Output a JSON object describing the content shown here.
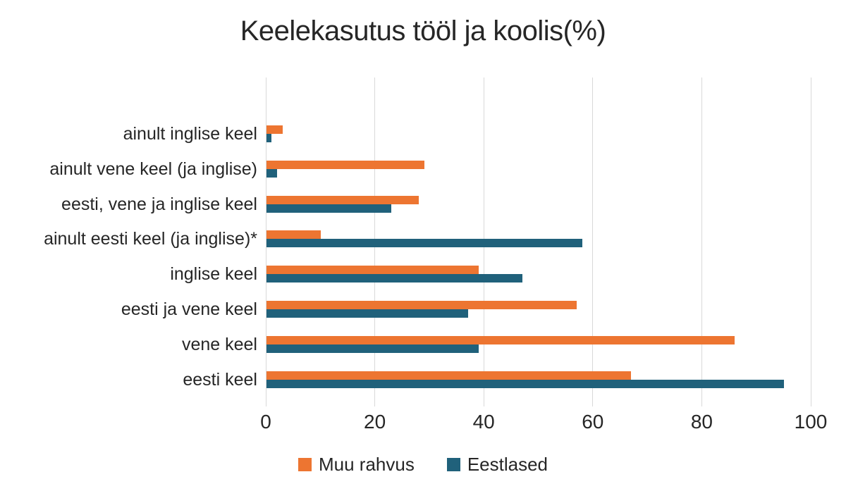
{
  "chart_data": {
    "type": "bar",
    "orientation": "horizontal",
    "title": "Keelekasutus tööl ja koolis(%)",
    "categories": [
      "ainult inglise keel",
      "ainult vene keel (ja inglise)",
      "eesti, vene ja inglise keel",
      "ainult eesti keel (ja inglise)*",
      "inglise keel",
      "eesti ja vene keel",
      "vene keel",
      "eesti keel"
    ],
    "series": [
      {
        "name": "Muu rahvus",
        "color": "#ed7531",
        "values": [
          3,
          29,
          28,
          10,
          39,
          57,
          86,
          67
        ]
      },
      {
        "name": "Eestlased",
        "color": "#20617b",
        "values": [
          1,
          2,
          23,
          58,
          47,
          37,
          39,
          95
        ]
      }
    ],
    "xlim": [
      0,
      100
    ],
    "xticks": [
      0,
      20,
      40,
      60,
      80,
      100
    ],
    "grid": true,
    "legend_position": "bottom"
  },
  "colors": {
    "text": "#262626",
    "gridline": "#d9d9d9",
    "background": "#ffffff"
  }
}
